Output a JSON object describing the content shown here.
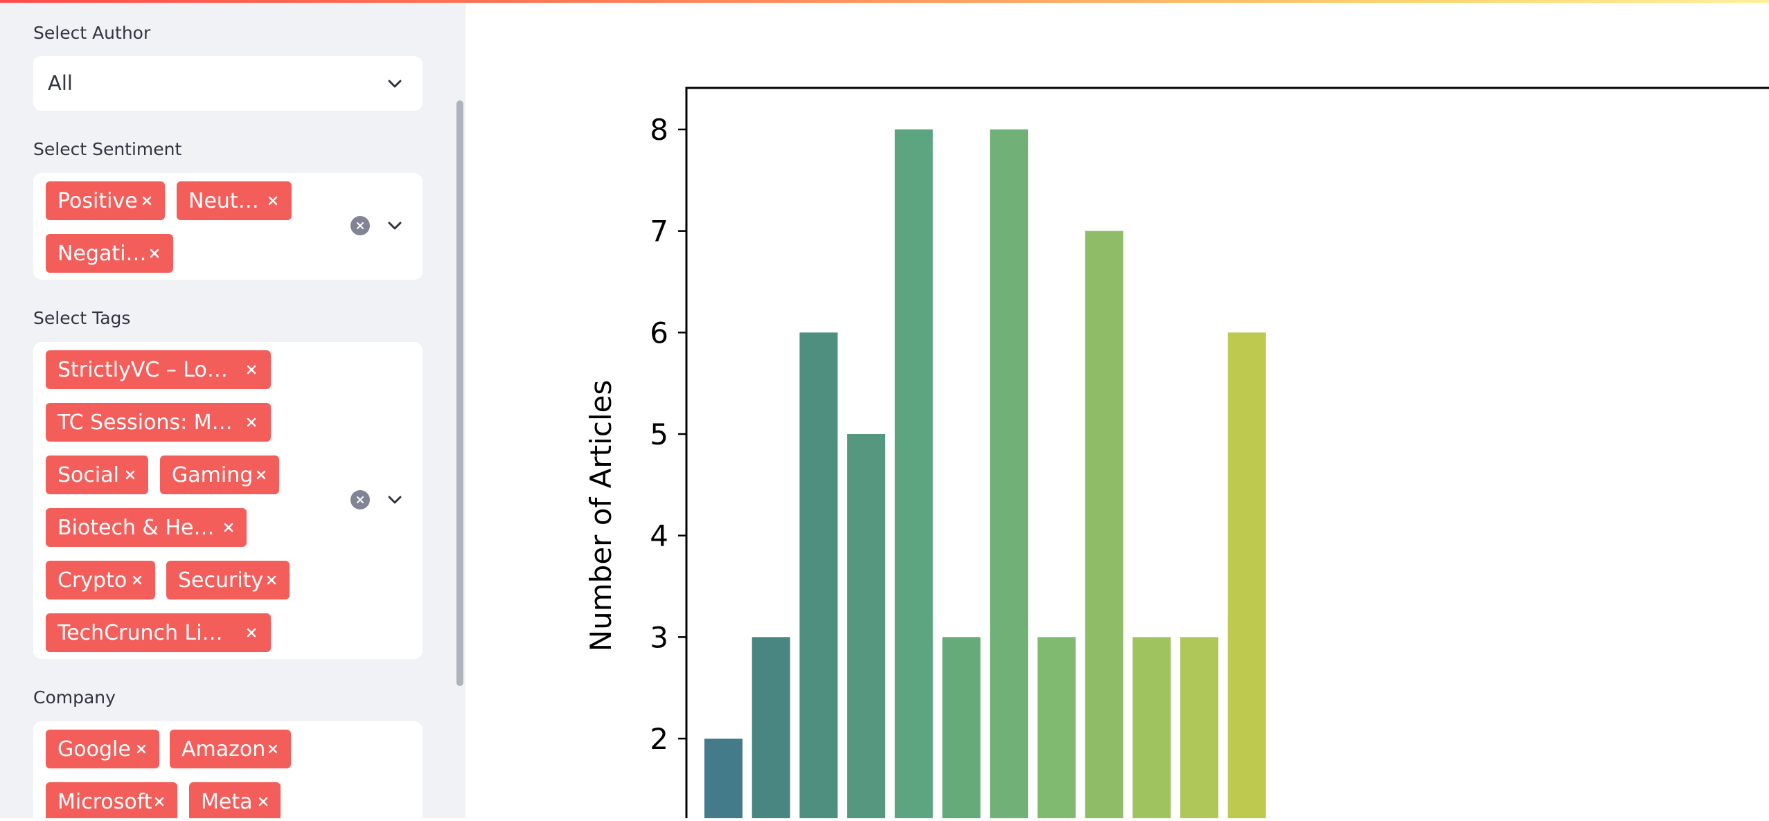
{
  "sidebar": {
    "author": {
      "label": "Select Author",
      "value": "All"
    },
    "sentiment": {
      "label": "Select Sentiment",
      "tags": [
        "Positive",
        "Neutral",
        "Negative"
      ]
    },
    "tags": {
      "label": "Select Tags",
      "tags": [
        "StrictlyVC – Los …",
        "TC Sessions: Mo…",
        "Social",
        "Gaming",
        "Biotech & Health",
        "Crypto",
        "Security",
        "TechCrunch Live…"
      ]
    },
    "company": {
      "label": "Company",
      "tags": [
        "Google",
        "Amazon",
        "Microsoft",
        "Meta"
      ]
    }
  },
  "icons": {
    "dropdown": "chevron-down-icon",
    "clear": "clear-all-icon",
    "remove": "close-icon"
  },
  "colors": {
    "tag": "#f45e5a",
    "sidebar_bg": "#f0f2f6",
    "accent": "#ff4b4b"
  },
  "chart_data": {
    "type": "bar",
    "ylabel": "Number of Articles",
    "yticks": [
      2,
      3,
      4,
      5,
      6,
      7,
      8
    ],
    "values": [
      2,
      3,
      6,
      5,
      8,
      3,
      8,
      3,
      7,
      3,
      3,
      6
    ],
    "colors": [
      "#447b8a",
      "#4a8681",
      "#4e8f7f",
      "#55977f",
      "#5da480",
      "#67aa79",
      "#71b076",
      "#80b970",
      "#8fbd67",
      "#9fc45f",
      "#afc658",
      "#bdc94f"
    ]
  }
}
